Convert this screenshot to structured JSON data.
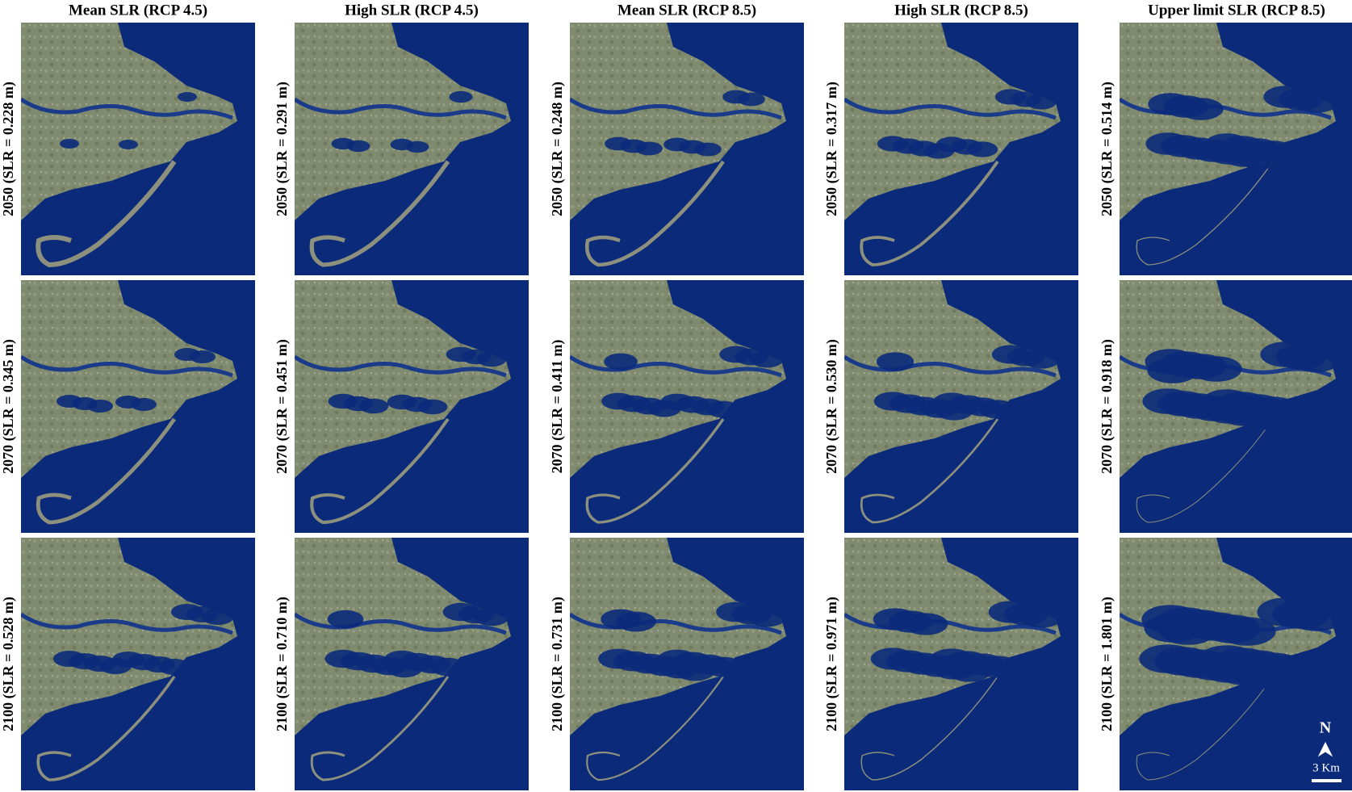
{
  "columns": [
    "Mean SLR (RCP 4.5)",
    "High SLR (RCP 4.5)",
    "Mean SLR (RCP 8.5)",
    "High SLR (RCP 8.5)",
    "Upper limit SLR (RCP 8.5)"
  ],
  "panels": [
    [
      "2050 (SLR = 0.228 m)",
      "2050 (SLR = 0.291 m)",
      "2050 (SLR = 0.248 m)",
      "2050 (SLR = 0.317 m)",
      "2050 (SLR = 0.514 m)"
    ],
    [
      "2070 (SLR = 0.345 m)",
      "2070 (SLR = 0.451 m)",
      "2070 (SLR = 0.411 m)",
      "2070 (SLR = 0.530 m)",
      "2070 (SLR = 0.918 m)"
    ],
    [
      "2100 (SLR = 0.528 m)",
      "2100 (SLR = 0.710 m)",
      "2100 (SLR = 0.731 m)",
      "2100 (SLR = 0.971 m)",
      "2100 (SLR = 1.801 m)"
    ]
  ],
  "north_label": "N",
  "scale_label": "3 Km"
}
